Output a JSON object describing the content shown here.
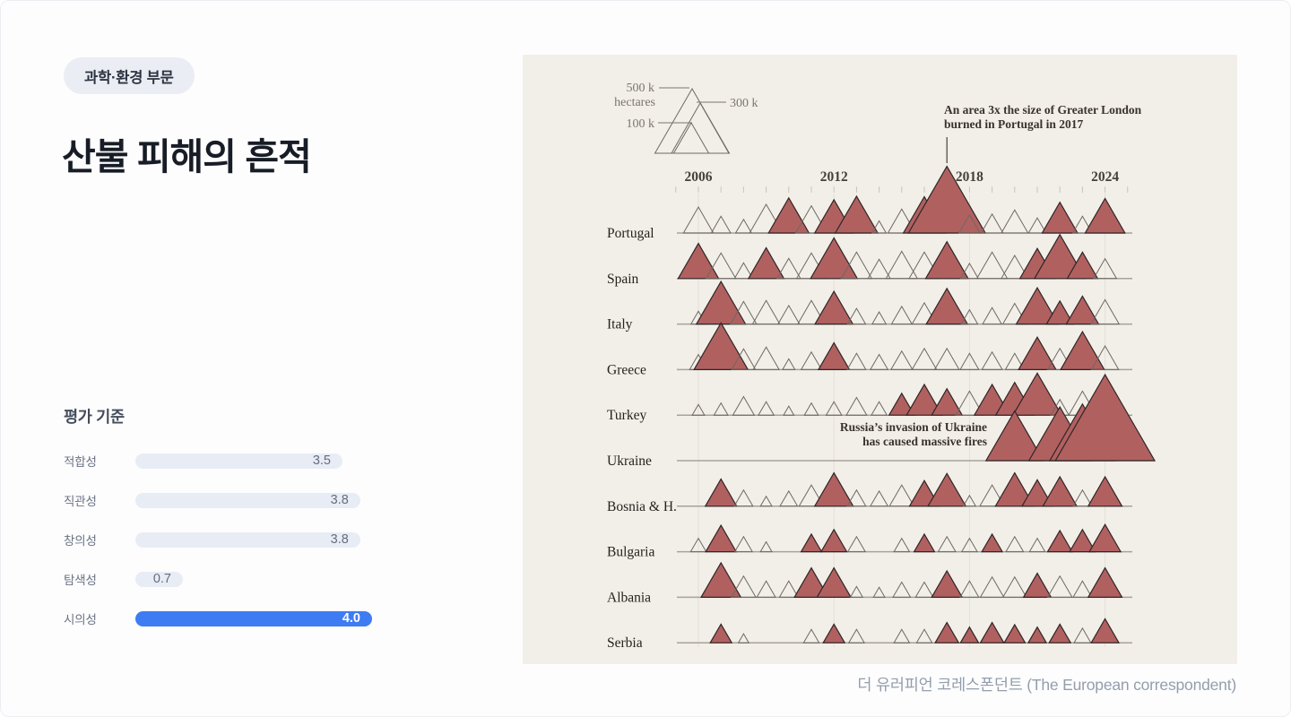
{
  "badge": {
    "label": "과학·환경 부문"
  },
  "title": "산불 피해의 흔적",
  "criteria": {
    "heading": "평가 기준",
    "scale_max": 4.0,
    "items": [
      {
        "label": "적합성",
        "value": "3.5",
        "highlight": false
      },
      {
        "label": "직관성",
        "value": "3.8",
        "highlight": false
      },
      {
        "label": "창의성",
        "value": "3.8",
        "highlight": false
      },
      {
        "label": "탐색성",
        "value": "0.7",
        "highlight": false
      },
      {
        "label": "시의성",
        "value": "4.0",
        "highlight": true
      }
    ],
    "bar_color_default": "#e8ecf5",
    "bar_color_highlight": "#3e7cf3",
    "value_color_default": "#646e7e",
    "value_color_highlight": "#ffffff"
  },
  "caption": "더 유러피언 코레스폰던트 (The European correspondent)",
  "chart_data": {
    "type": "triangle-area-timeline",
    "unit": "thousand hectares burned per year",
    "legend": {
      "items": [
        {
          "label": "500 k",
          "sublabel": "hectares",
          "value": 500
        },
        {
          "label": "300 k",
          "value": 300
        },
        {
          "label": "100 k",
          "value": 100
        }
      ]
    },
    "x_axis": {
      "start_year": 2005,
      "end_year": 2025,
      "tick_labels": [
        "2006",
        "2012",
        "2018",
        "2024"
      ],
      "label_years": [
        2006,
        2012,
        2018,
        2024
      ]
    },
    "annotations": [
      {
        "lines": [
          "An area 3x the size of Greater London",
          "burned in Portugal in 2017"
        ],
        "target_country": "Portugal",
        "target_year": 2017,
        "align": "left"
      },
      {
        "lines": [
          "Russia’s invasion of Ukraine",
          "has caused massive fires"
        ],
        "target_country": "Ukraine",
        "align": "right"
      }
    ],
    "colors": {
      "filled": "#b16060",
      "filled_stroke": "#2f2626",
      "outline_stroke": "#6e6862",
      "baseline": "#a8a29a",
      "gridline": "#e3dfd8",
      "tick": "#c9c4bc",
      "background": "#f2efe9",
      "label_text": "#26211d",
      "year_text": "#44403a",
      "annotation_text": "#3a332c",
      "legend_text": "#7b756c"
    },
    "fires_format": [
      "year",
      "thousand_hectares",
      "filled"
    ],
    "series": [
      {
        "country": "Portugal",
        "fires": [
          [
            2006,
            82,
            0
          ],
          [
            2007,
            34,
            0
          ],
          [
            2008,
            23,
            0
          ],
          [
            2009,
            100,
            0
          ],
          [
            2010,
            150,
            1
          ],
          [
            2011,
            90,
            0
          ],
          [
            2012,
            135,
            1
          ],
          [
            2013,
            165,
            1
          ],
          [
            2014,
            18,
            0
          ],
          [
            2015,
            70,
            0
          ],
          [
            2016,
            160,
            1
          ],
          [
            2017,
            540,
            1
          ],
          [
            2018,
            40,
            0
          ],
          [
            2019,
            44,
            0
          ],
          [
            2020,
            65,
            0
          ],
          [
            2021,
            28,
            0
          ],
          [
            2022,
            115,
            1
          ],
          [
            2023,
            34,
            0
          ],
          [
            2024,
            145,
            1
          ]
        ]
      },
      {
        "country": "Spain",
        "fires": [
          [
            2006,
            150,
            1
          ],
          [
            2007,
            80,
            0
          ],
          [
            2008,
            30,
            0
          ],
          [
            2009,
            115,
            1
          ],
          [
            2010,
            50,
            0
          ],
          [
            2011,
            80,
            0
          ],
          [
            2012,
            200,
            1
          ],
          [
            2013,
            85,
            0
          ],
          [
            2014,
            45,
            0
          ],
          [
            2015,
            90,
            0
          ],
          [
            2016,
            85,
            0
          ],
          [
            2017,
            165,
            1
          ],
          [
            2018,
            28,
            0
          ],
          [
            2019,
            85,
            0
          ],
          [
            2020,
            65,
            0
          ],
          [
            2021,
            110,
            1
          ],
          [
            2022,
            235,
            1
          ],
          [
            2023,
            85,
            1
          ],
          [
            2024,
            48,
            0
          ]
        ]
      },
      {
        "country": "Italy",
        "fires": [
          [
            2006,
            20,
            0
          ],
          [
            2007,
            220,
            1
          ],
          [
            2008,
            62,
            0
          ],
          [
            2009,
            68,
            0
          ],
          [
            2010,
            42,
            0
          ],
          [
            2011,
            68,
            0
          ],
          [
            2012,
            130,
            1
          ],
          [
            2013,
            30,
            0
          ],
          [
            2014,
            18,
            0
          ],
          [
            2015,
            38,
            0
          ],
          [
            2016,
            55,
            0
          ],
          [
            2017,
            155,
            1
          ],
          [
            2018,
            25,
            0
          ],
          [
            2019,
            33,
            0
          ],
          [
            2020,
            52,
            0
          ],
          [
            2021,
            160,
            1
          ],
          [
            2022,
            65,
            1
          ],
          [
            2023,
            95,
            1
          ],
          [
            2024,
            72,
            0
          ]
        ]
      },
      {
        "country": "Greece",
        "fires": [
          [
            2006,
            28,
            0
          ],
          [
            2007,
            265,
            1
          ],
          [
            2008,
            52,
            0
          ],
          [
            2009,
            62,
            0
          ],
          [
            2010,
            14,
            0
          ],
          [
            2011,
            38,
            0
          ],
          [
            2012,
            88,
            1
          ],
          [
            2013,
            32,
            0
          ],
          [
            2014,
            28,
            0
          ],
          [
            2015,
            42,
            0
          ],
          [
            2016,
            55,
            0
          ],
          [
            2017,
            55,
            0
          ],
          [
            2018,
            32,
            0
          ],
          [
            2019,
            38,
            0
          ],
          [
            2020,
            32,
            0
          ],
          [
            2021,
            128,
            1
          ],
          [
            2022,
            55,
            0
          ],
          [
            2023,
            175,
            1
          ],
          [
            2024,
            68,
            0
          ]
        ]
      },
      {
        "country": "Turkey",
        "fires": [
          [
            2006,
            14,
            0
          ],
          [
            2007,
            18,
            0
          ],
          [
            2008,
            42,
            0
          ],
          [
            2009,
            22,
            0
          ],
          [
            2010,
            10,
            0
          ],
          [
            2011,
            18,
            0
          ],
          [
            2012,
            22,
            0
          ],
          [
            2013,
            38,
            0
          ],
          [
            2014,
            22,
            0
          ],
          [
            2015,
            58,
            1
          ],
          [
            2016,
            115,
            1
          ],
          [
            2017,
            85,
            1
          ],
          [
            2018,
            70,
            0
          ],
          [
            2019,
            115,
            1
          ],
          [
            2020,
            130,
            1
          ],
          [
            2021,
            215,
            1
          ],
          [
            2022,
            30,
            0
          ],
          [
            2023,
            70,
            0
          ],
          [
            2024,
            120,
            1
          ]
        ]
      },
      {
        "country": "Ukraine",
        "fires": [
          [
            2020,
            300,
            1
          ],
          [
            2021,
            18,
            0
          ],
          [
            2022,
            350,
            1
          ],
          [
            2023,
            390,
            1
          ],
          [
            2024,
            900,
            1
          ]
        ]
      },
      {
        "country": "Bosnia & H.",
        "fires": [
          [
            2007,
            90,
            1
          ],
          [
            2008,
            32,
            0
          ],
          [
            2009,
            12,
            0
          ],
          [
            2010,
            28,
            0
          ],
          [
            2011,
            55,
            0
          ],
          [
            2012,
            135,
            1
          ],
          [
            2013,
            32,
            0
          ],
          [
            2014,
            28,
            0
          ],
          [
            2015,
            55,
            0
          ],
          [
            2016,
            80,
            1
          ],
          [
            2017,
            130,
            1
          ],
          [
            2018,
            14,
            0
          ],
          [
            2019,
            55,
            0
          ],
          [
            2020,
            135,
            1
          ],
          [
            2021,
            85,
            1
          ],
          [
            2022,
            105,
            1
          ],
          [
            2023,
            32,
            0
          ],
          [
            2024,
            105,
            1
          ]
        ]
      },
      {
        "country": "Bulgaria",
        "fires": [
          [
            2006,
            22,
            0
          ],
          [
            2007,
            85,
            1
          ],
          [
            2008,
            28,
            0
          ],
          [
            2009,
            12,
            0
          ],
          [
            2011,
            38,
            1
          ],
          [
            2012,
            60,
            1
          ],
          [
            2013,
            28,
            0
          ],
          [
            2015,
            22,
            0
          ],
          [
            2016,
            38,
            1
          ],
          [
            2017,
            28,
            0
          ],
          [
            2018,
            22,
            0
          ],
          [
            2019,
            38,
            1
          ],
          [
            2020,
            28,
            0
          ],
          [
            2021,
            22,
            0
          ],
          [
            2022,
            55,
            1
          ],
          [
            2023,
            60,
            1
          ],
          [
            2024,
            90,
            1
          ]
        ]
      },
      {
        "country": "Albania",
        "fires": [
          [
            2007,
            145,
            1
          ],
          [
            2008,
            55,
            0
          ],
          [
            2009,
            32,
            0
          ],
          [
            2010,
            32,
            0
          ],
          [
            2011,
            105,
            1
          ],
          [
            2012,
            105,
            1
          ],
          [
            2013,
            14,
            0
          ],
          [
            2014,
            12,
            0
          ],
          [
            2015,
            28,
            0
          ],
          [
            2016,
            28,
            0
          ],
          [
            2017,
            85,
            1
          ],
          [
            2018,
            32,
            0
          ],
          [
            2019,
            50,
            0
          ],
          [
            2020,
            50,
            0
          ],
          [
            2021,
            70,
            1
          ],
          [
            2022,
            55,
            0
          ],
          [
            2023,
            32,
            0
          ],
          [
            2024,
            105,
            1
          ]
        ]
      },
      {
        "country": "Serbia",
        "fires": [
          [
            2007,
            42,
            1
          ],
          [
            2008,
            10,
            0
          ],
          [
            2011,
            22,
            0
          ],
          [
            2012,
            42,
            1
          ],
          [
            2013,
            22,
            0
          ],
          [
            2015,
            22,
            0
          ],
          [
            2016,
            22,
            0
          ],
          [
            2017,
            50,
            1
          ],
          [
            2018,
            30,
            1
          ],
          [
            2019,
            50,
            1
          ],
          [
            2020,
            40,
            1
          ],
          [
            2021,
            30,
            1
          ],
          [
            2022,
            42,
            1
          ],
          [
            2023,
            26,
            0
          ],
          [
            2024,
            70,
            1
          ]
        ]
      }
    ]
  }
}
